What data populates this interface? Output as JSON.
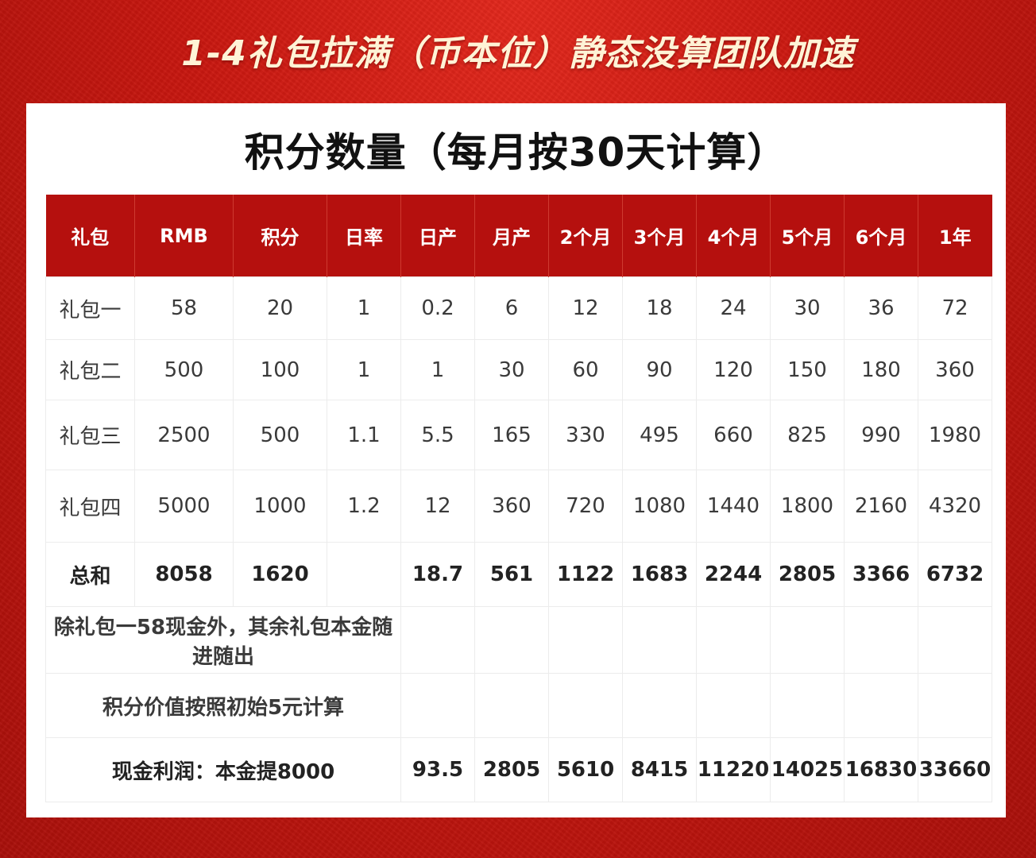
{
  "banner": {
    "title": "1-4礼包拉满（币本位）静态没算团队加速"
  },
  "card": {
    "title": "积分数量（每月按30天计算）"
  },
  "table": {
    "headers": [
      "礼包",
      "RMB",
      "积分",
      "日率",
      "日产",
      "月产",
      "2个月",
      "3个月",
      "4个月",
      "5个月",
      "6个月",
      "1年"
    ],
    "rows": [
      [
        "礼包一",
        "58",
        "20",
        "1",
        "0.2",
        "6",
        "12",
        "18",
        "24",
        "30",
        "36",
        "72"
      ],
      [
        "礼包二",
        "500",
        "100",
        "1",
        "1",
        "30",
        "60",
        "90",
        "120",
        "150",
        "180",
        "360"
      ],
      [
        "礼包三",
        "2500",
        "500",
        "1.1",
        "5.5",
        "165",
        "330",
        "495",
        "660",
        "825",
        "990",
        "1980"
      ],
      [
        "礼包四",
        "5000",
        "1000",
        "1.2",
        "12",
        "360",
        "720",
        "1080",
        "1440",
        "1800",
        "2160",
        "4320"
      ]
    ],
    "total": [
      "总和",
      "8058",
      "1620",
      "",
      "18.7",
      "561",
      "1122",
      "1683",
      "2244",
      "2805",
      "3366",
      "6732"
    ],
    "note1": "除礼包一58现金外，其余礼包本金随进随出",
    "note2": "积分价值按照初始5元计算",
    "profit": {
      "label": "现金利润：本金提8000",
      "values": [
        "93.5",
        "2805",
        "5610",
        "8415",
        "11220",
        "14025",
        "16830",
        "33660"
      ]
    }
  },
  "colors": {
    "background": "#c8170f",
    "header_fill": "#b5100e",
    "banner_text": "#fff3d6"
  }
}
